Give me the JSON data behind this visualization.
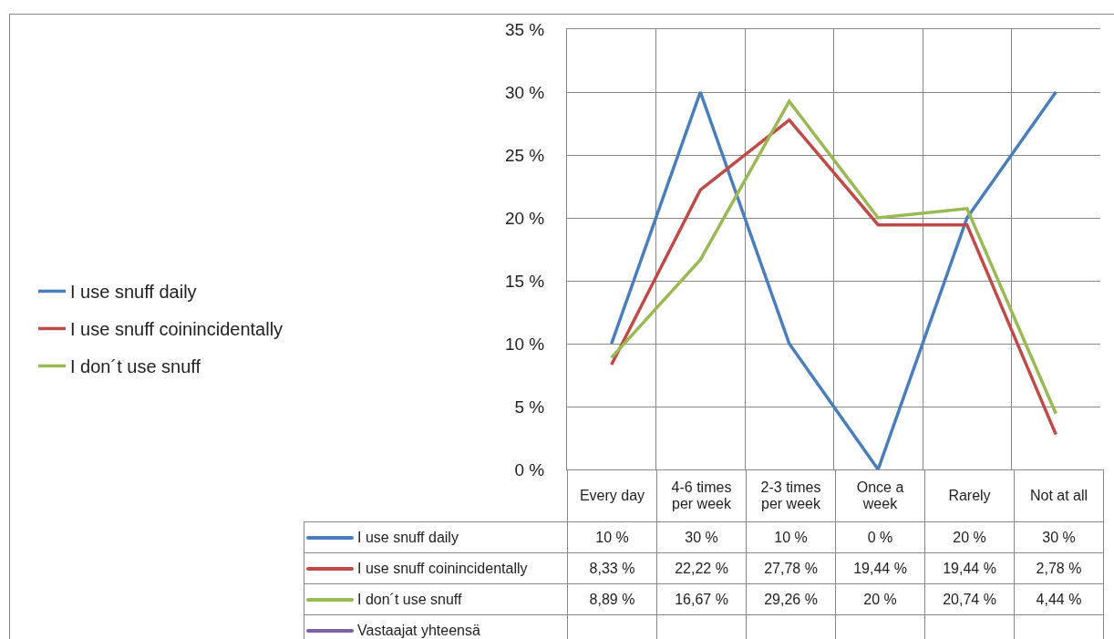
{
  "chart_data": {
    "type": "line",
    "categories": [
      "Every day",
      "4-6 times per week",
      "2-3 times per week",
      "Once a week",
      "Rarely",
      "Not at all"
    ],
    "series": [
      {
        "name": "I use snuff daily",
        "color": "#4a7ebb",
        "values": [
          10,
          30,
          10,
          0,
          20,
          30
        ],
        "value_labels": [
          "10 %",
          "30 %",
          "10 %",
          "0 %",
          "20 %",
          "30 %"
        ]
      },
      {
        "name": "I use snuff coinincidentally",
        "color": "#be4b48",
        "values": [
          8.33,
          22.22,
          27.78,
          19.44,
          19.44,
          2.78
        ],
        "value_labels": [
          "8,33 %",
          "22,22 %",
          "27,78 %",
          "19,44 %",
          "19,44 %",
          "2,78 %"
        ]
      },
      {
        "name": "I don´t use snuff",
        "color": "#98b954",
        "values": [
          8.89,
          16.67,
          29.26,
          20,
          20.74,
          4.44
        ],
        "value_labels": [
          "8,89 %",
          "16,67 %",
          "29,26 %",
          "20 %",
          "20,74 %",
          "4,44 %"
        ]
      },
      {
        "name": "Vastaajat yhteensä",
        "color": "#7d60a0",
        "values": [
          null,
          null,
          null,
          null,
          null,
          null
        ],
        "value_labels": [
          null,
          null,
          null,
          null,
          null,
          null
        ]
      }
    ],
    "ylim": [
      0,
      35
    ],
    "yticks": [
      {
        "value": 0,
        "label": "0 %"
      },
      {
        "value": 5,
        "label": "5 %"
      },
      {
        "value": 10,
        "label": "10 %"
      },
      {
        "value": 15,
        "label": "15 %"
      },
      {
        "value": 20,
        "label": "20 %"
      },
      {
        "value": 25,
        "label": "25 %"
      },
      {
        "value": 30,
        "label": "30 %"
      },
      {
        "value": 35,
        "label": "35 %"
      }
    ],
    "grid": "y",
    "legend": "left",
    "marker": "none",
    "line_style": "solid"
  }
}
